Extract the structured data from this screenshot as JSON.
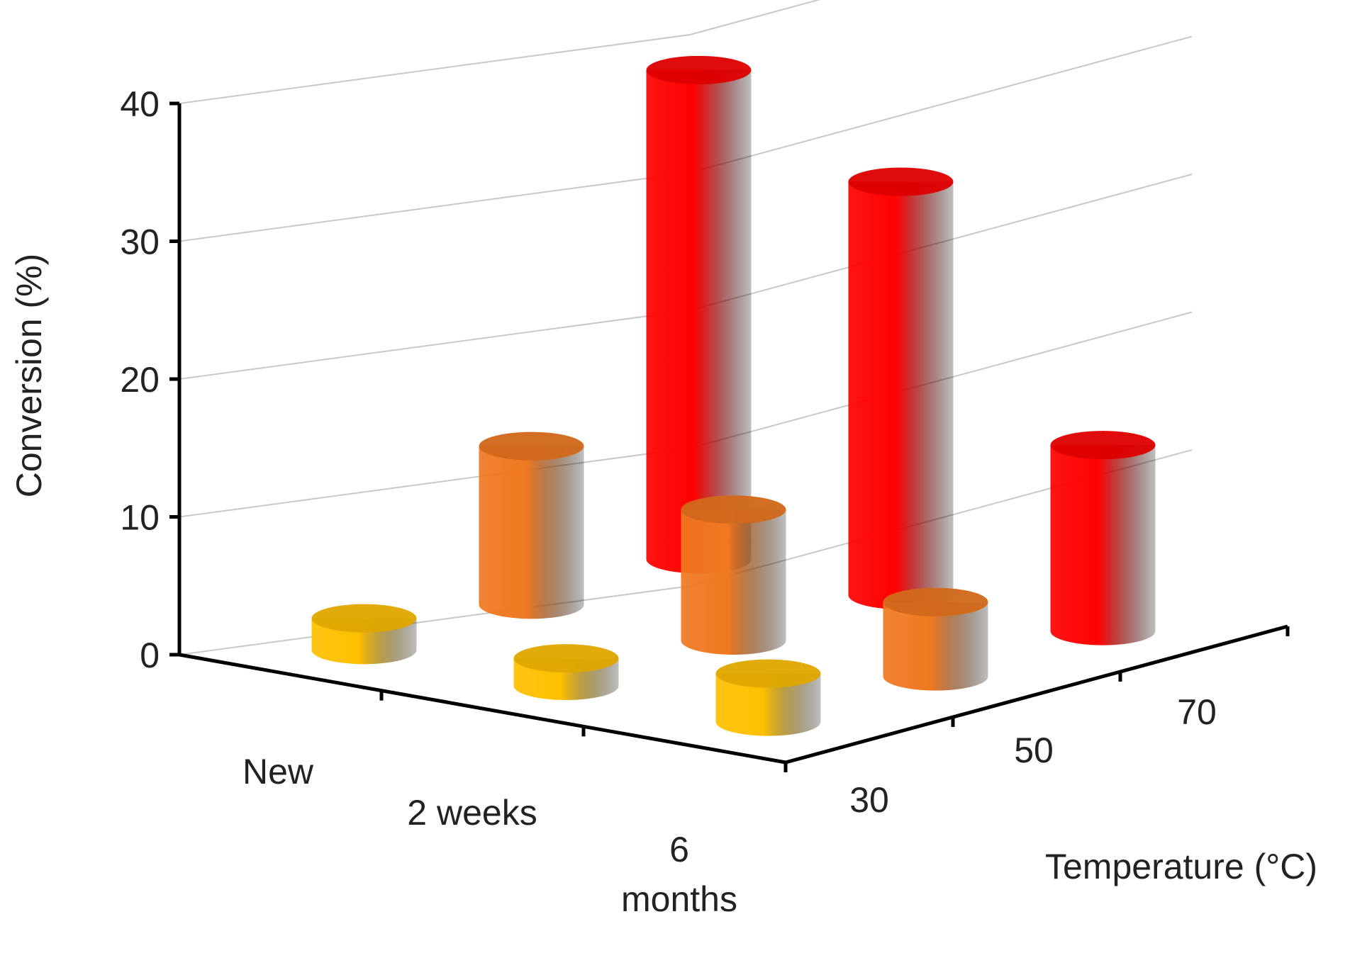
{
  "chart_data": {
    "type": "bar",
    "subtype": "3d-cylinder",
    "title": "",
    "ylabel": "Conversion (%)",
    "xlabel": "Temperature (°C)",
    "ylim": [
      0,
      40
    ],
    "yticks": [
      "0",
      "10",
      "20",
      "30",
      "40"
    ],
    "age_categories": [
      {
        "line1": "New",
        "line2": ""
      },
      {
        "line1": "2 weeks",
        "line2": ""
      },
      {
        "line1": "6",
        "line2": "months"
      }
    ],
    "temperature_categories": [
      "30",
      "50",
      "70"
    ],
    "grid": true,
    "legend": "none",
    "series_colors": {
      "30": "#FFC000",
      "50": "#F07820",
      "70": "#FF0000"
    },
    "values": [
      {
        "age": "New",
        "temperature": "30",
        "value": 2.3
      },
      {
        "age": "New",
        "temperature": "50",
        "value": 11.5
      },
      {
        "age": "New",
        "temperature": "70",
        "value": 35.5
      },
      {
        "age": "2 weeks",
        "temperature": "30",
        "value": 2.0
      },
      {
        "age": "2 weeks",
        "temperature": "50",
        "value": 9.5
      },
      {
        "age": "2 weeks",
        "temperature": "70",
        "value": 30.0
      },
      {
        "age": "6 months",
        "temperature": "30",
        "value": 3.5
      },
      {
        "age": "6 months",
        "temperature": "50",
        "value": 5.4
      },
      {
        "age": "6 months",
        "temperature": "70",
        "value": 13.5
      }
    ]
  }
}
